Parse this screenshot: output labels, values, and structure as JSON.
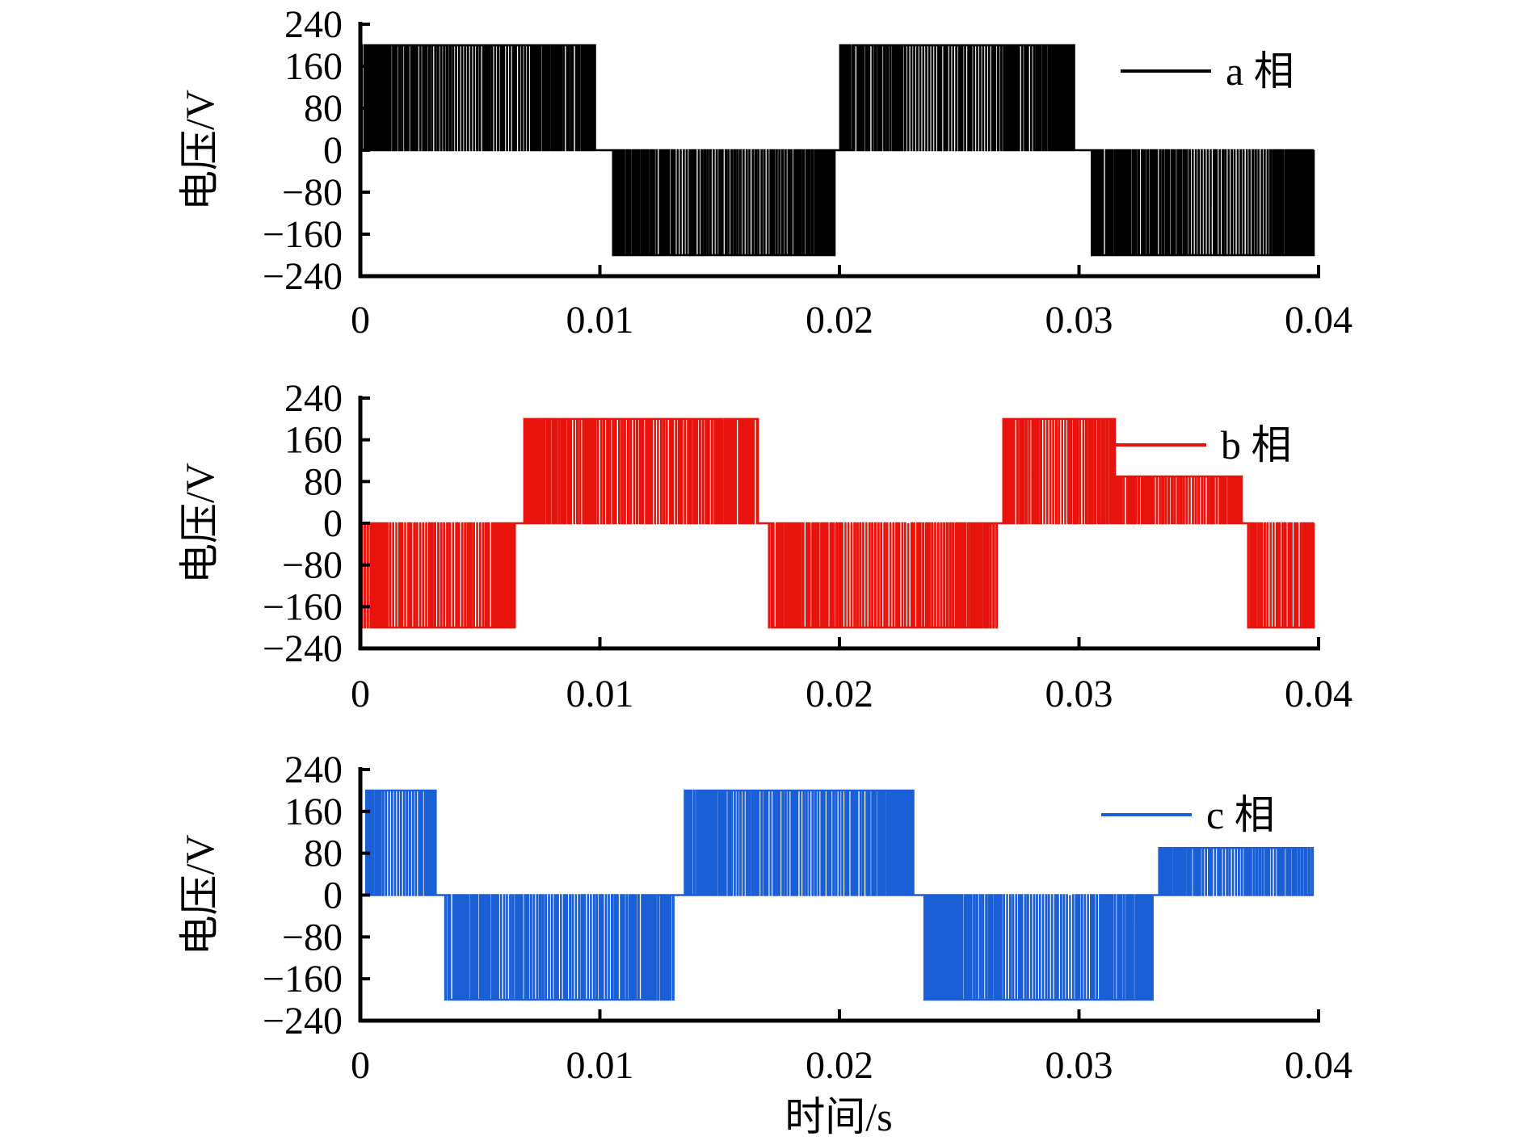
{
  "chart_data": [
    {
      "type": "line",
      "title": "",
      "xlabel": "",
      "ylabel": "电压/V",
      "xlim": [
        0,
        0.04
      ],
      "ylim": [
        -240,
        240
      ],
      "xticks": [
        "0",
        "0.01",
        "0.02",
        "0.03",
        "0.04"
      ],
      "yticks": [
        "240",
        "160",
        "80",
        "0",
        "−80",
        "−160",
        "−240"
      ],
      "legend": "top-right",
      "series": [
        {
          "name": "a 相",
          "color": "#000000",
          "segments": [
            [
              0.0,
              0.0098,
              200
            ],
            [
              0.0105,
              0.0198,
              -200
            ],
            [
              0.02,
              0.0298,
              200
            ],
            [
              0.0305,
              0.0398,
              -200
            ]
          ]
        }
      ]
    },
    {
      "type": "line",
      "title": "",
      "xlabel": "",
      "ylabel": "电压/V",
      "xlim": [
        0,
        0.04
      ],
      "ylim": [
        -240,
        240
      ],
      "xticks": [
        "0",
        "0.01",
        "0.02",
        "0.03",
        "0.04"
      ],
      "yticks": [
        "240",
        "160",
        "80",
        "0",
        "−80",
        "−160",
        "−240"
      ],
      "legend": "top-right",
      "series": [
        {
          "name": "b 相",
          "color": "#e8130c",
          "segments": [
            [
              0.0,
              0.0065,
              -200
            ],
            [
              0.0068,
              0.0166,
              200
            ],
            [
              0.017,
              0.0266,
              -200
            ],
            [
              0.0268,
              0.0315,
              200
            ],
            [
              0.0315,
              0.0368,
              90
            ],
            [
              0.037,
              0.0398,
              -200
            ]
          ]
        }
      ]
    },
    {
      "type": "line",
      "title": "",
      "xlabel": "时间/s",
      "ylabel": "电压/V",
      "xlim": [
        0,
        0.04
      ],
      "ylim": [
        -240,
        240
      ],
      "xticks": [
        "0",
        "0.01",
        "0.02",
        "0.03",
        "0.04"
      ],
      "yticks": [
        "240",
        "160",
        "80",
        "0",
        "−80",
        "−160",
        "−240"
      ],
      "legend": "top-right",
      "series": [
        {
          "name": "c 相",
          "color": "#1a5fd6",
          "segments": [
            [
              0.0002,
              0.0032,
              200
            ],
            [
              0.0035,
              0.0131,
              -200
            ],
            [
              0.0135,
              0.0231,
              200
            ],
            [
              0.0235,
              0.0331,
              -200
            ],
            [
              0.0333,
              0.0398,
              90
            ]
          ]
        }
      ]
    }
  ]
}
